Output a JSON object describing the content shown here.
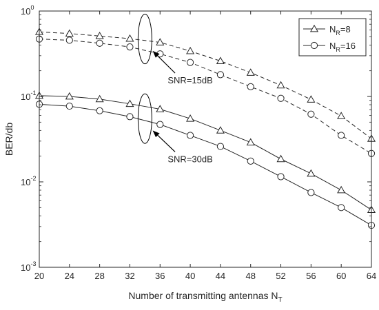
{
  "chart_data": {
    "type": "line",
    "xlabel": "Number of transmitting antennas N",
    "xlabel_sub": "T",
    "ylabel": "BER/db",
    "yscale": "log",
    "xlim": [
      20,
      64
    ],
    "ylim": [
      0.001,
      1
    ],
    "xticks": [
      20,
      24,
      28,
      32,
      36,
      40,
      44,
      48,
      52,
      56,
      60,
      64
    ],
    "yticks": [
      {
        "value": 1,
        "base": "10",
        "exp": "0"
      },
      {
        "value": 0.1,
        "base": "10",
        "exp": "-1"
      },
      {
        "value": 0.01,
        "base": "10",
        "exp": "-2"
      },
      {
        "value": 0.001,
        "base": "10",
        "exp": "-3"
      }
    ],
    "grid": false,
    "legend_position": "top-right",
    "legend": [
      {
        "main": "N",
        "sub": "R",
        "tail": "=8",
        "marker": "triangle"
      },
      {
        "main": "N",
        "sub": "R",
        "tail": "=16",
        "marker": "circle"
      }
    ],
    "x": [
      20,
      24,
      28,
      32,
      36,
      40,
      44,
      48,
      52,
      56,
      60,
      64
    ],
    "series": [
      {
        "nr": 8,
        "snr": 15,
        "style": "dashed",
        "marker": "triangle",
        "values": [
          0.57,
          0.545,
          0.51,
          0.475,
          0.43,
          0.34,
          0.26,
          0.19,
          0.135,
          0.092,
          0.059,
          0.032
        ]
      },
      {
        "nr": 16,
        "snr": 15,
        "style": "dashed",
        "marker": "circle",
        "values": [
          0.47,
          0.455,
          0.42,
          0.38,
          0.315,
          0.25,
          0.18,
          0.13,
          0.095,
          0.062,
          0.035,
          0.0215
        ]
      },
      {
        "nr": 8,
        "snr": 30,
        "style": "solid",
        "marker": "triangle",
        "values": [
          0.102,
          0.1,
          0.093,
          0.082,
          0.071,
          0.055,
          0.04,
          0.029,
          0.0185,
          0.0125,
          0.008,
          0.0047
        ]
      },
      {
        "nr": 16,
        "snr": 30,
        "style": "solid",
        "marker": "circle",
        "values": [
          0.081,
          0.077,
          0.068,
          0.058,
          0.047,
          0.035,
          0.026,
          0.0175,
          0.0115,
          0.0075,
          0.005,
          0.0031
        ]
      }
    ],
    "annotations": [
      {
        "text": "SNR=15dB",
        "ellipse_x": 34,
        "ellipse_y": 0.47,
        "label_x": 40,
        "label_y": 0.142
      },
      {
        "text": "SNR=30dB",
        "ellipse_x": 34,
        "ellipse_y": 0.055,
        "label_x": 40,
        "label_y": 0.017
      }
    ]
  }
}
